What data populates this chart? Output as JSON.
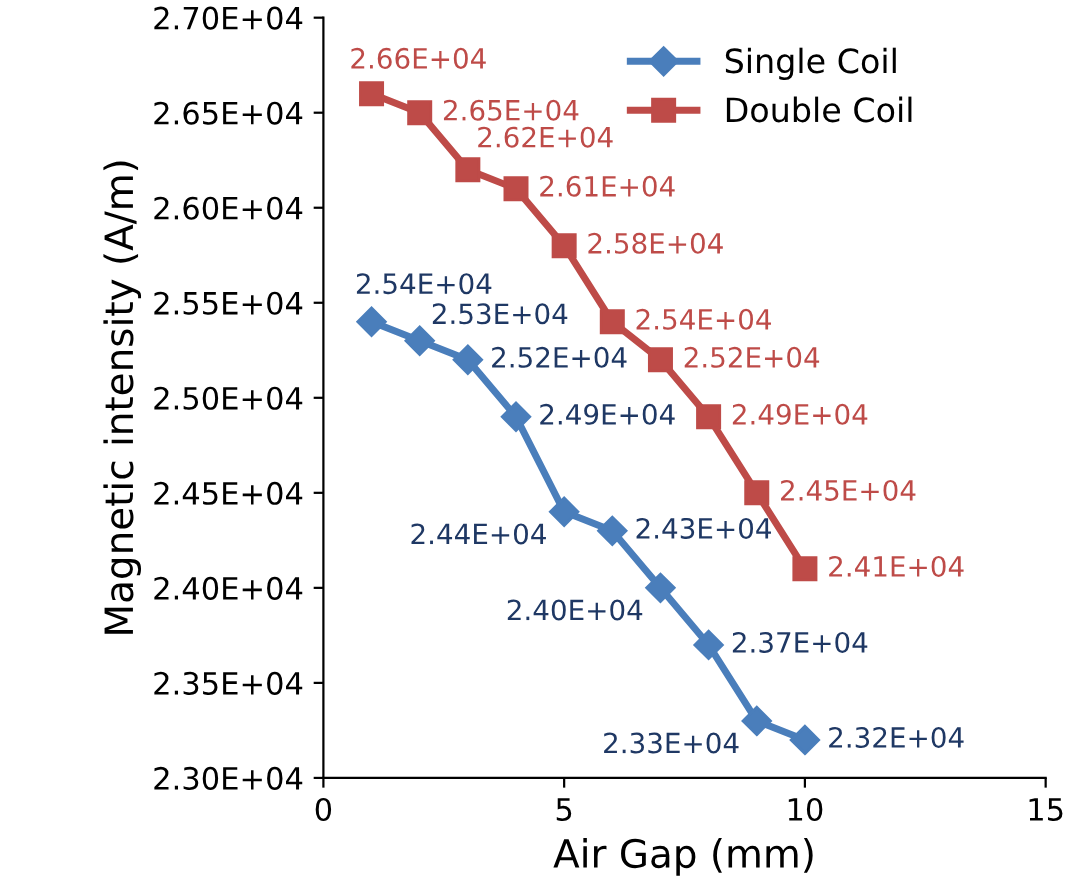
{
  "chart_data": {
    "type": "line",
    "xlabel": "Air Gap (mm)",
    "ylabel": "Magnetic intensity (A/m)",
    "xlim": [
      0,
      15
    ],
    "xticks": [
      0,
      5,
      10,
      15
    ],
    "ylim": [
      23000,
      27000
    ],
    "yticks": [
      {
        "value": 23000,
        "label": "2.30E+04"
      },
      {
        "value": 23500,
        "label": "2.35E+04"
      },
      {
        "value": 24000,
        "label": "2.40E+04"
      },
      {
        "value": 24500,
        "label": "2.45E+04"
      },
      {
        "value": 25000,
        "label": "2.50E+04"
      },
      {
        "value": 25500,
        "label": "2.55E+04"
      },
      {
        "value": 26000,
        "label": "2.60E+04"
      },
      {
        "value": 26500,
        "label": "2.65E+04"
      },
      {
        "value": 27000,
        "label": "2.70E+04"
      }
    ],
    "grid": false,
    "legend": "top right",
    "series": [
      {
        "name": "Single Coil",
        "color": "#4a7ebb",
        "marker": "diamond",
        "x": [
          1,
          2,
          3,
          4,
          5,
          6,
          7,
          8,
          9,
          10
        ],
        "values": [
          25400,
          25300,
          25200,
          24900,
          24400,
          24300,
          24000,
          23700,
          23300,
          23200
        ],
        "value_labels": [
          "2.54E+04",
          "2.53E+04",
          "2.52E+04",
          "2.49E+04",
          "2.44E+04",
          "2.43E+04",
          "2.40E+04",
          "2.37E+04",
          "2.33E+04",
          "2.32E+04"
        ]
      },
      {
        "name": "Double Coil",
        "color": "#be4b48",
        "marker": "square",
        "x": [
          1,
          2,
          3,
          4,
          5,
          6,
          7,
          8,
          9,
          10
        ],
        "values": [
          26600,
          26500,
          26200,
          26100,
          25800,
          25400,
          25200,
          24900,
          24500,
          24100
        ],
        "value_labels": [
          "2.66E+04",
          "2.65E+04",
          "2.62E+04",
          "2.61E+04",
          "2.58E+04",
          "2.54E+04",
          "2.52E+04",
          "2.49E+04",
          "2.45E+04",
          "2.41E+04"
        ]
      }
    ]
  }
}
